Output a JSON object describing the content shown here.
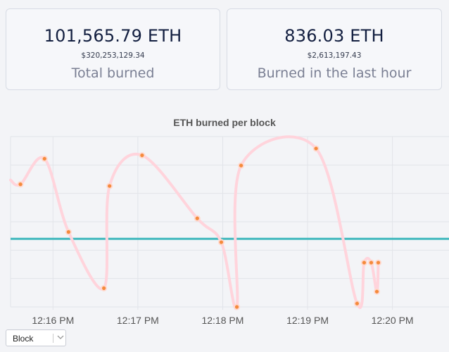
{
  "stats": {
    "total_burned": {
      "eth": "101,565.79 ETH",
      "usd": "$320,253,129.34",
      "label": "Total burned"
    },
    "last_hour": {
      "eth": "836.03 ETH",
      "usd": "$2,613,197.43",
      "label": "Burned in the last hour"
    }
  },
  "colors": {
    "line": "#ffd4dc",
    "point": "#f58a3c",
    "reference_line": "#3fb8bd",
    "grid": "#e2e4e9"
  },
  "chart_data": {
    "type": "line",
    "title": "ETH burned per block",
    "x_ticks": [
      "12:16 PM",
      "12:17 PM",
      "12:18 PM",
      "12:19 PM",
      "12:20 PM"
    ],
    "xlim": [
      "12:15:30 PM",
      "12:20:40 PM"
    ],
    "horizontal_grid_lines": 6,
    "grid": true,
    "series": [
      {
        "x": [
          "12:15:37 PM",
          "12:15:54 PM",
          "12:16:11 PM",
          "12:16:36 PM",
          "12:16:40 PM",
          "12:17:03 PM",
          "12:17:42 PM",
          "12:17:59 PM",
          "12:18:10 PM",
          "12:18:13 PM",
          "12:19:06 PM",
          "12:19:35 PM",
          "12:19:40 PM",
          "12:19:45 PM",
          "12:19:49 PM",
          "12:19:50 PM"
        ],
        "values": [
          0.72,
          0.87,
          0.44,
          0.11,
          0.71,
          0.89,
          0.52,
          0.38,
          0.0,
          0.83,
          0.93,
          0.02,
          0.26,
          0.26,
          0.09,
          0.26
        ]
      }
    ],
    "reference_line": 0.4
  },
  "controls": {
    "block_select": {
      "value": "Block"
    }
  }
}
